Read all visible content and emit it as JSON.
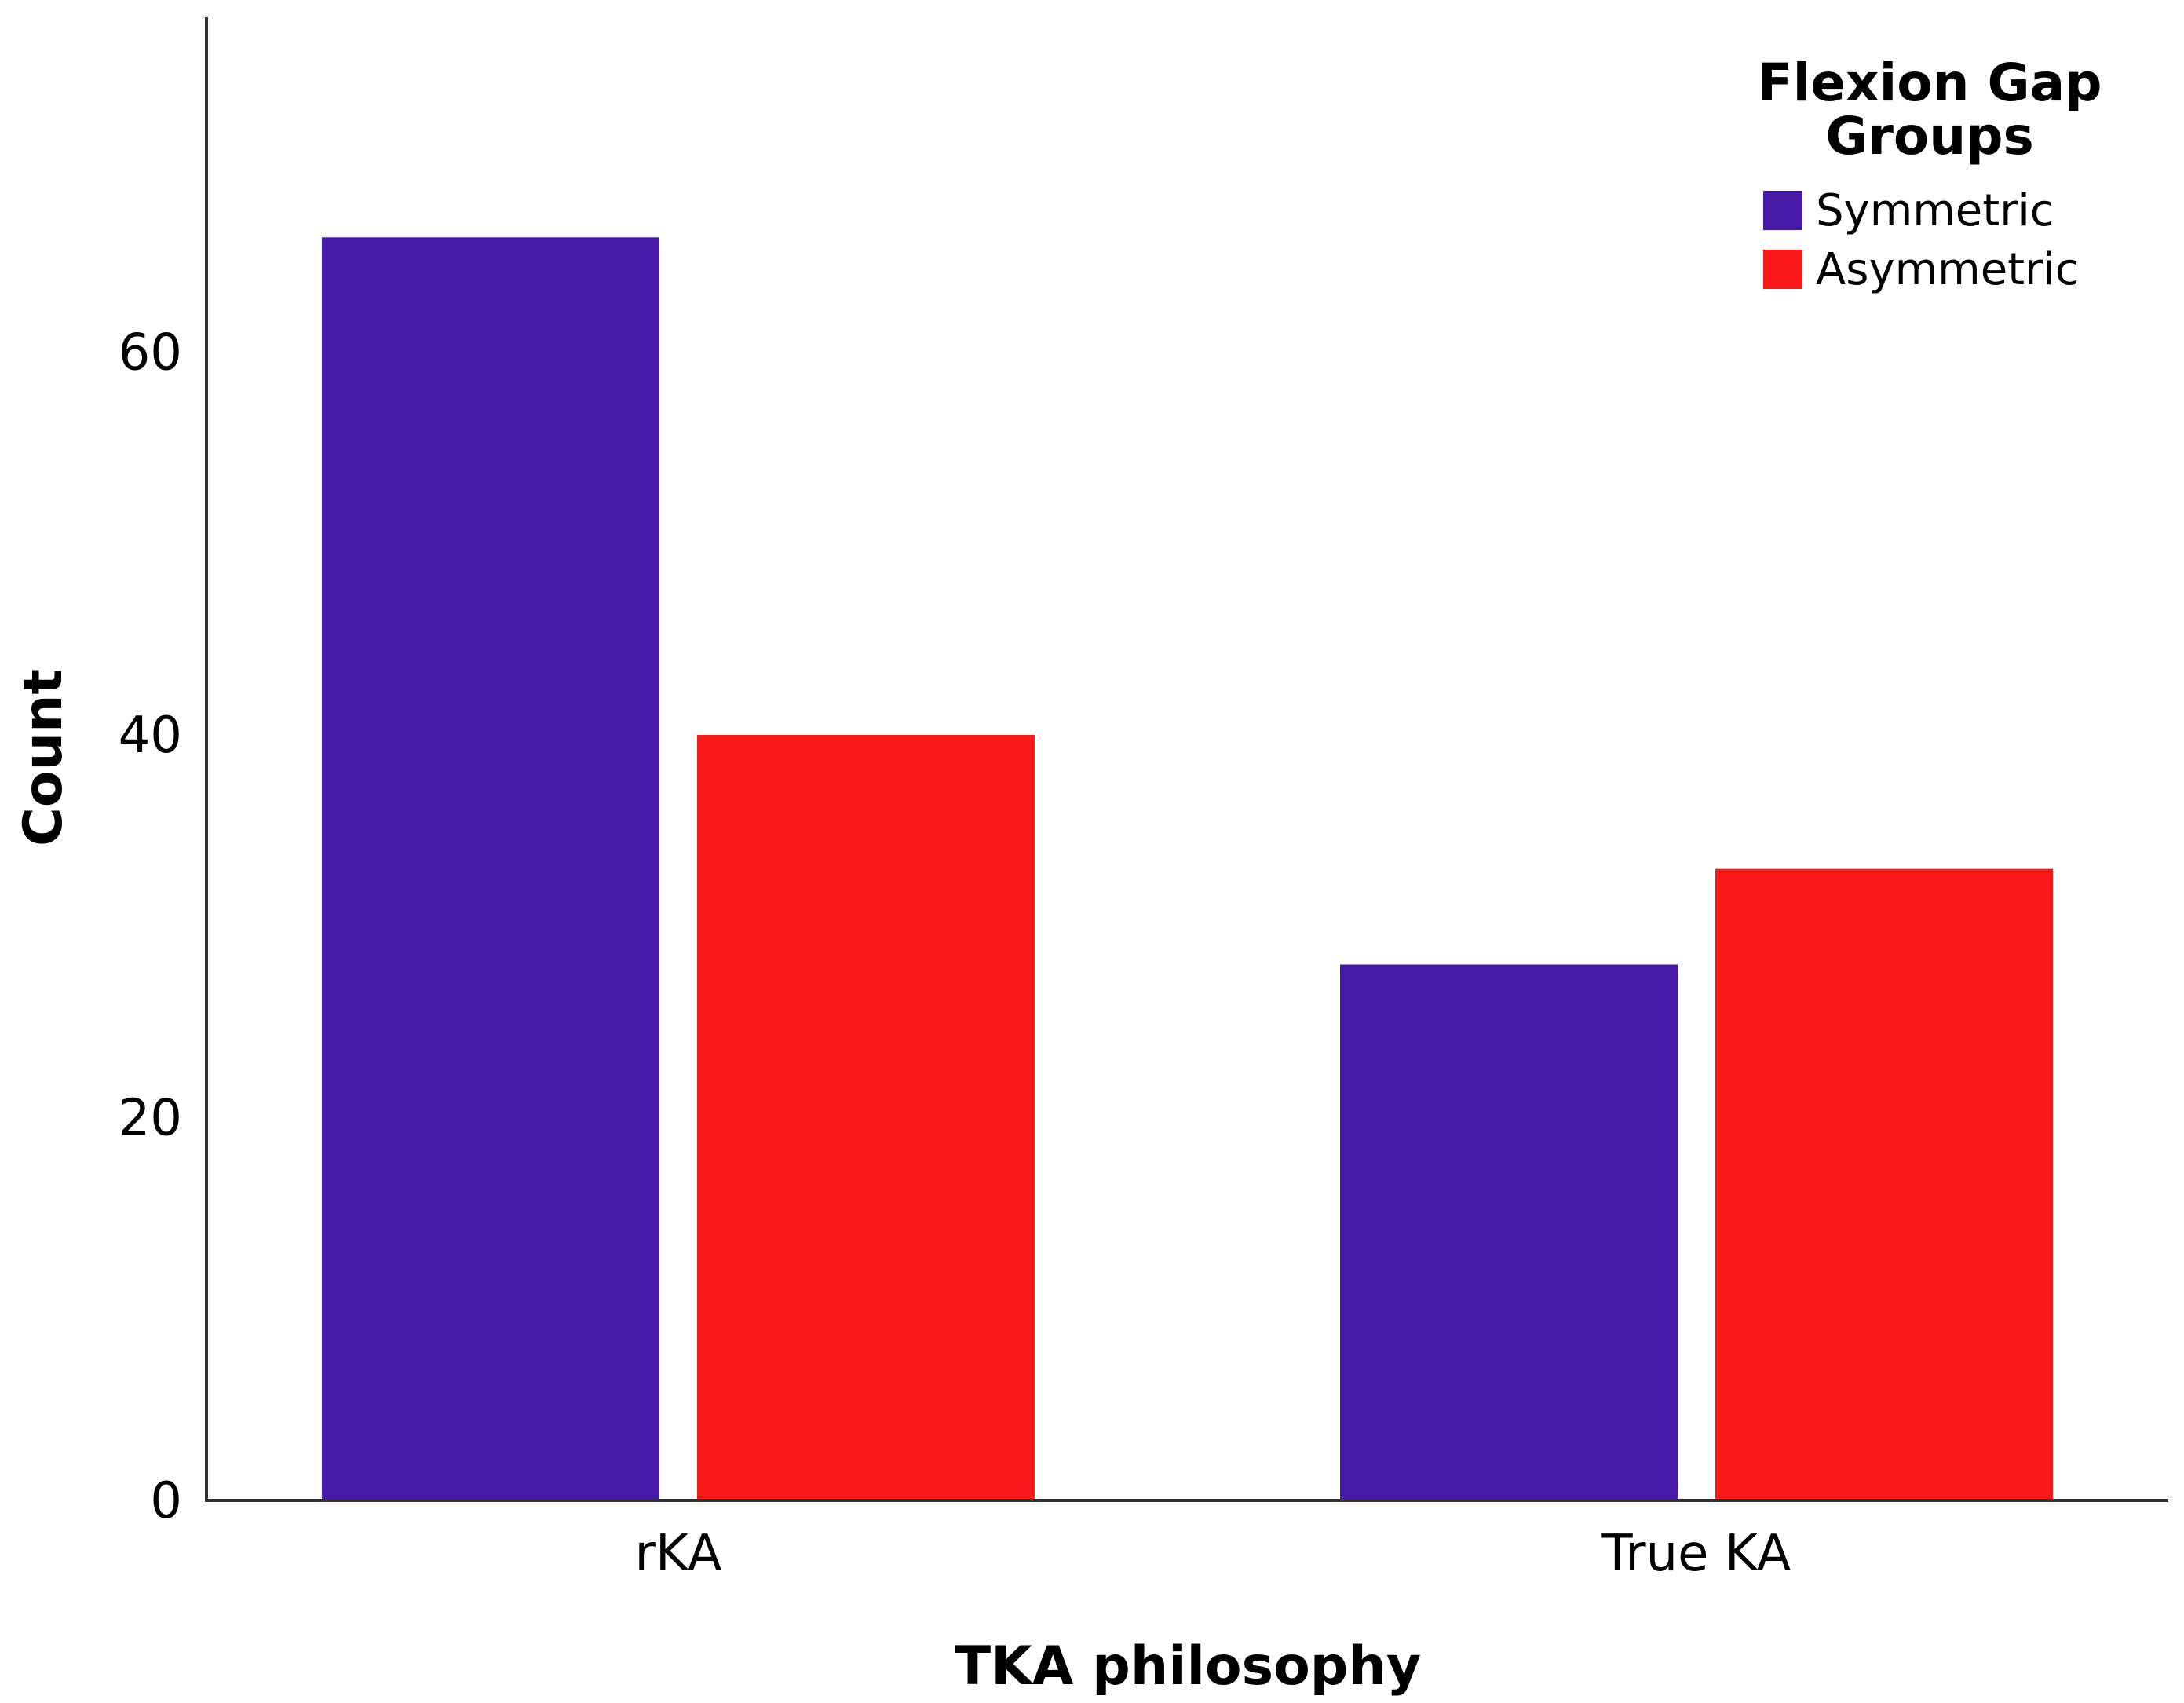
{
  "chart_data": {
    "type": "bar",
    "title": "",
    "xlabel": "TKA philosophy",
    "ylabel": "Count",
    "categories": [
      "rKA",
      "True KA"
    ],
    "series": [
      {
        "name": "Symmetric",
        "values": [
          66,
          28
        ],
        "color": "#4619A7"
      },
      {
        "name": "Asymmetric",
        "values": [
          40,
          33
        ],
        "color": "#F81918"
      }
    ],
    "ylim": [
      0,
      77.5
    ],
    "yticks": [
      0,
      20,
      40,
      60
    ],
    "grid": false,
    "legend": {
      "title_lines": [
        "Flexion Gap",
        "Groups"
      ],
      "position": "top-right"
    }
  }
}
